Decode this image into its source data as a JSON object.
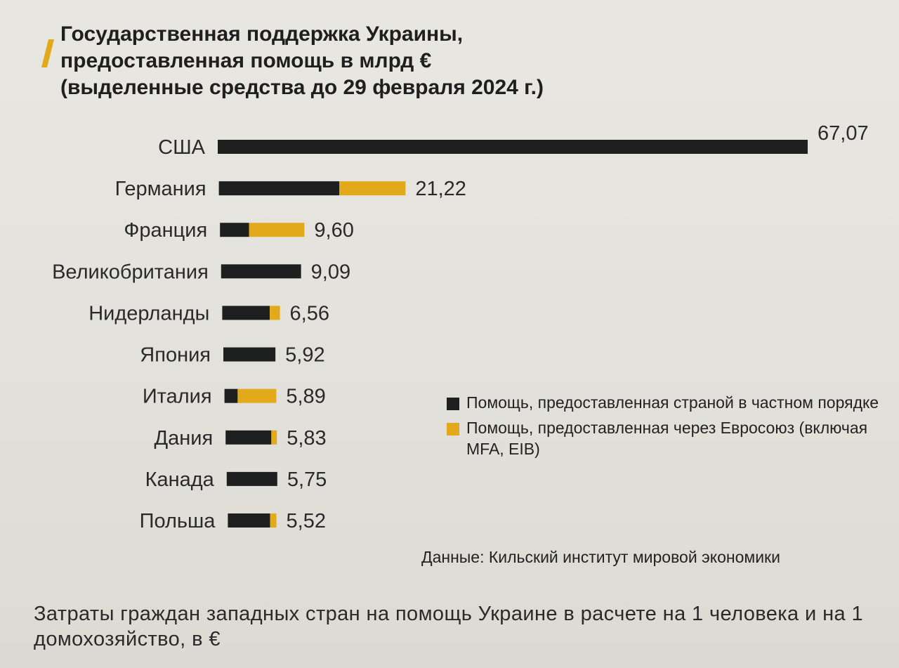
{
  "colors": {
    "private": "#1e2020",
    "eu": "#e2aa1a",
    "accent": "#e2aa1a"
  },
  "chart_data": {
    "type": "bar",
    "orientation": "horizontal",
    "stacked": true,
    "title": [
      "Государственная поддержка Украины,",
      "предоставленная помощь в млрд €",
      "(выделенные средства до 29 февраля 2024 г.)"
    ],
    "categories": [
      "США",
      "Германия",
      "Франция",
      "Великобритания",
      "Нидерланды",
      "Япония",
      "Италия",
      "Дания",
      "Канада",
      "Польша"
    ],
    "totals": [
      67.07,
      21.22,
      9.6,
      9.09,
      6.56,
      5.92,
      5.89,
      5.83,
      5.75,
      5.52
    ],
    "total_labels": [
      "67,07",
      "21,22",
      "9,60",
      "9,09",
      "6,56",
      "5,92",
      "5,89",
      "5,83",
      "5,75",
      "5,52"
    ],
    "series": [
      {
        "name": "Помощь, предоставленная страной в частном порядке",
        "values": [
          67.07,
          13.7,
          3.3,
          9.09,
          5.4,
          5.92,
          1.5,
          5.2,
          5.75,
          4.8
        ]
      },
      {
        "name": "Помощь, предоставленная через Евросоюз (включая MFA, EIB)",
        "values": [
          0,
          7.52,
          6.3,
          0,
          1.16,
          0,
          4.39,
          0.63,
          0,
          0.72
        ]
      }
    ],
    "legend_position": "right",
    "grid": false
  },
  "legend": {
    "private": "Помощь, предоставленная страной в частном порядке",
    "eu": "Помощь, предоставленная через Евросоюз (включая MFA, EIB)"
  },
  "source": "Данные: Кильский институт мировой экономики",
  "caption": "Затраты граждан западных стран на помощь Украине в расчете на 1 человека и на 1 домохозяйство, в €"
}
